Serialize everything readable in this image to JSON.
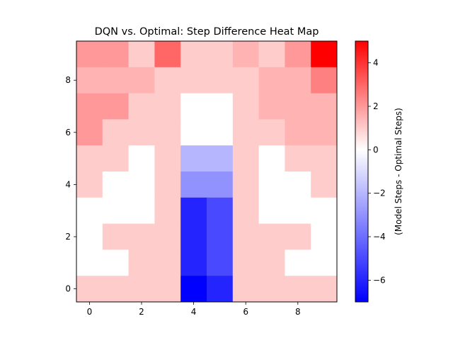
{
  "chart_data": {
    "type": "heatmap",
    "title": "DQN vs. Optimal: Step Difference Heat Map",
    "xlabel": "",
    "ylabel": "",
    "x_ticks": [
      0,
      2,
      4,
      6,
      8
    ],
    "y_ticks": [
      0,
      2,
      4,
      6,
      8
    ],
    "xlim": [
      -0.5,
      9.5
    ],
    "ylim": [
      -0.5,
      9.5
    ],
    "grid": false,
    "origin": "lower",
    "rows_top_to_bottom": [
      [
        2,
        2,
        1,
        3,
        1,
        1,
        1.5,
        1,
        2,
        5
      ],
      [
        1.5,
        1.5,
        1.5,
        1,
        1,
        1,
        1,
        1.5,
        1.5,
        2.5
      ],
      [
        2,
        2,
        1,
        1,
        0,
        0,
        1,
        1.5,
        1.5,
        1.5
      ],
      [
        2,
        1,
        1,
        1,
        0,
        0,
        1,
        1,
        1.5,
        1.5
      ],
      [
        1,
        1,
        0,
        1,
        -2,
        -2,
        1,
        0,
        1,
        1
      ],
      [
        1,
        0,
        0,
        1,
        -3,
        -3,
        1,
        0,
        0,
        1
      ],
      [
        0,
        0,
        0,
        1,
        -6,
        -5,
        1,
        0,
        0,
        0
      ],
      [
        0,
        1,
        1,
        1,
        -6,
        -5,
        1,
        1,
        1,
        0
      ],
      [
        0,
        0,
        1,
        1,
        -6,
        -5,
        1,
        1,
        0,
        0
      ],
      [
        1,
        1,
        1,
        1,
        -7,
        -6,
        1,
        1,
        1,
        1
      ]
    ],
    "colorbar": {
      "label": "(Model Steps - Optimal Steps)",
      "vmin": -7,
      "vmax": 5,
      "ticks": [
        -6,
        -4,
        -2,
        0,
        2,
        4
      ],
      "colormap": "bwr",
      "colors": {
        "negative": "#0000ff",
        "zero": "#ffffff",
        "positive": "#ff0000"
      }
    }
  }
}
